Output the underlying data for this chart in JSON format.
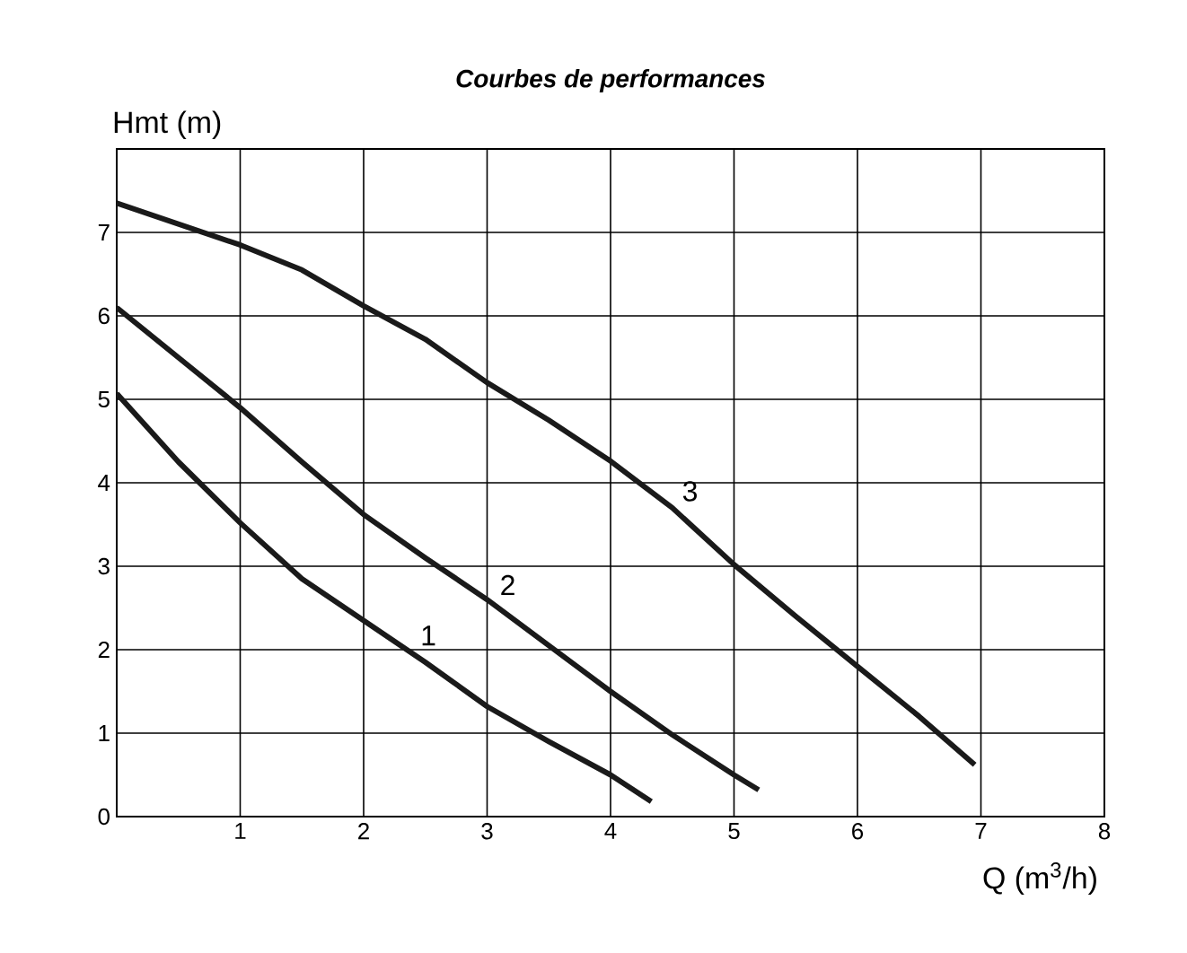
{
  "chart_data": {
    "type": "line",
    "title": "Courbes de performances",
    "xlabel": "Q (m$^{3}$/h)",
    "ylabel": "Hmt (m)",
    "xlim": [
      0,
      8
    ],
    "ylim": [
      0,
      8
    ],
    "xticks": [
      1,
      2,
      3,
      4,
      5,
      6,
      7,
      8
    ],
    "yticks": [
      0,
      1,
      2,
      3,
      4,
      5,
      6,
      7
    ],
    "grid": true,
    "marker": "none",
    "line_style": "solid",
    "series": [
      {
        "name": "1",
        "color": "#1a1a1a",
        "x": [
          0,
          0.5,
          1,
          1.5,
          2,
          2.5,
          3,
          3.5,
          4,
          4.33
        ],
        "values": [
          5.07,
          4.25,
          3.52,
          2.85,
          2.35,
          1.85,
          1.32,
          0.9,
          0.5,
          0.18
        ]
      },
      {
        "name": "2",
        "color": "#1a1a1a",
        "x": [
          0,
          0.5,
          1,
          1.5,
          2,
          2.5,
          3,
          3.5,
          4,
          4.5,
          5,
          5.2
        ],
        "values": [
          6.1,
          5.5,
          4.9,
          4.25,
          3.62,
          3.1,
          2.6,
          2.05,
          1.5,
          0.98,
          0.5,
          0.32
        ]
      },
      {
        "name": "3",
        "color": "#1a1a1a",
        "x": [
          0,
          0.5,
          1,
          1.5,
          2,
          2.5,
          3,
          3.5,
          4,
          4.5,
          5,
          5.5,
          6,
          6.5,
          6.95
        ],
        "values": [
          7.35,
          7.1,
          6.85,
          6.55,
          6.12,
          5.72,
          5.2,
          4.75,
          4.26,
          3.7,
          3.02,
          2.4,
          1.8,
          1.2,
          0.62
        ]
      }
    ]
  }
}
